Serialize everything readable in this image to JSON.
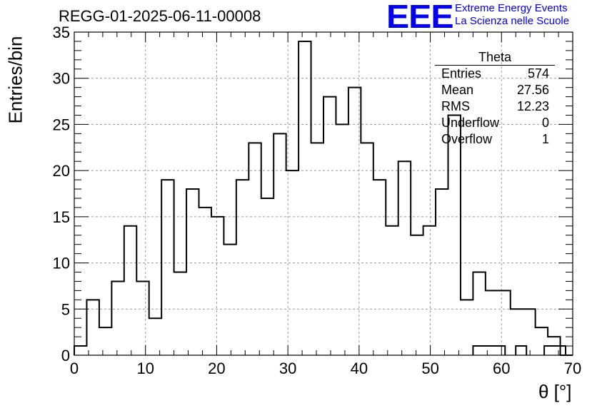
{
  "header": {
    "title": "REGG-01-2025-06-11-00008",
    "logo_mark": "EEE",
    "logo_line1": "Extreme Energy Events",
    "logo_line2": "La Scienza nelle Scuole"
  },
  "stats": {
    "title": "Theta",
    "rows": [
      {
        "label": "Entries",
        "value": "574"
      },
      {
        "label": "Mean",
        "value": "27.56"
      },
      {
        "label": "RMS",
        "value": "12.23"
      },
      {
        "label": "Underflow",
        "value": "0"
      },
      {
        "label": "Overflow",
        "value": "1"
      }
    ]
  },
  "chart_data": {
    "type": "histogram",
    "title": "REGG-01-2025-06-11-00008",
    "xlabel": "θ [°]",
    "ylabel": "Entries/bin",
    "xlim": [
      0,
      70
    ],
    "ylim": [
      0,
      35
    ],
    "bin_width": 1.75,
    "bin_edges_start": 0,
    "values": [
      1,
      6,
      3,
      8,
      14,
      8,
      4,
      19,
      9,
      18,
      16,
      15,
      12,
      19,
      23,
      17,
      24,
      20,
      34,
      23,
      28,
      25,
      29,
      23,
      19,
      14,
      21,
      13,
      14,
      18,
      26,
      6,
      9,
      7,
      7,
      5,
      5,
      3,
      2,
      0
    ],
    "overflow_values": [],
    "x_ticks": [
      "0",
      "10",
      "20",
      "30",
      "40",
      "50",
      "60",
      "70"
    ],
    "y_ticks": [
      "0",
      "5",
      "10",
      "15",
      "20",
      "25",
      "30",
      "35"
    ],
    "tail": [
      {
        "x0": 56,
        "x1": 60.5,
        "y": 1
      },
      {
        "x0": 62,
        "x1": 63.5,
        "y": 1
      },
      {
        "x0": 66,
        "x1": 69,
        "y": 1
      }
    ],
    "grid": true,
    "color": "#000000"
  }
}
